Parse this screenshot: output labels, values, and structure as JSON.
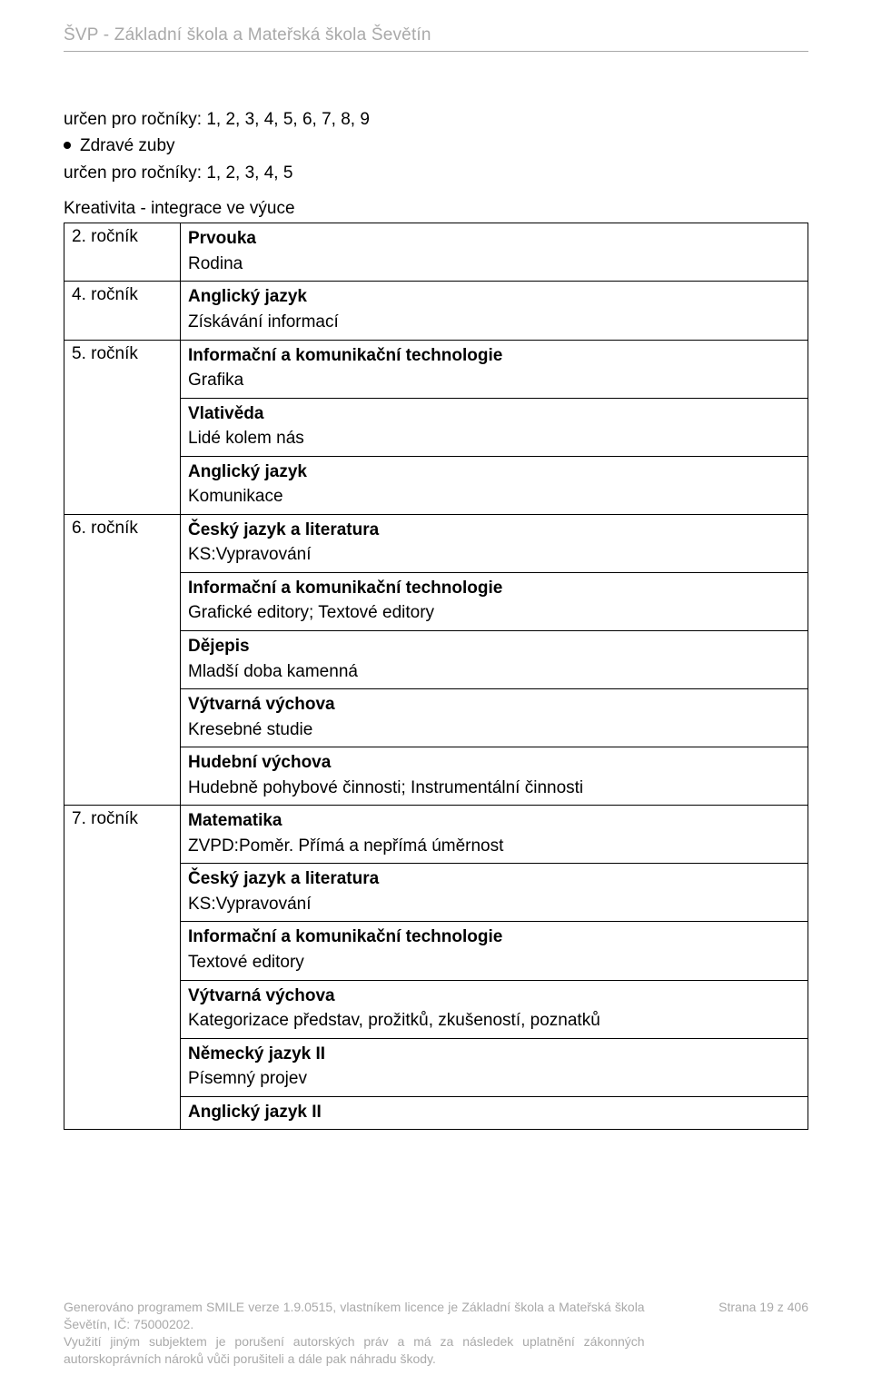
{
  "header": {
    "title": "ŠVP - Základní škola a Mateřská škola Ševětín"
  },
  "intro": {
    "line1": "určen pro ročníky:  1, 2, 3, 4, 5, 6, 7, 8, 9",
    "bullet_label": "Zdravé zuby",
    "line2": "určen pro ročníky:  1, 2, 3, 4, 5"
  },
  "table_title": "Kreativita - integrace ve výuce",
  "rows": [
    {
      "grade": "2. ročník",
      "items": [
        {
          "subject": "Prvouka",
          "topic": "Rodina"
        }
      ]
    },
    {
      "grade": "4. ročník",
      "items": [
        {
          "subject": "Anglický jazyk",
          "topic": "Získávání informací"
        }
      ]
    },
    {
      "grade": "5. ročník",
      "items": [
        {
          "subject": "Informační a komunikační technologie",
          "topic": "Grafika"
        },
        {
          "subject": "Vlativěda",
          "topic": "Lidé kolem nás"
        },
        {
          "subject": "Anglický jazyk",
          "topic": "Komunikace"
        }
      ]
    },
    {
      "grade": "6. ročník",
      "items": [
        {
          "subject": "Český jazyk a literatura",
          "topic": "KS:Vypravování"
        },
        {
          "subject": "Informační a komunikační technologie",
          "topic": "Grafické editory; Textové editory"
        },
        {
          "subject": "Dějepis",
          "topic": "Mladší doba kamenná"
        },
        {
          "subject": "Výtvarná výchova",
          "topic": "Kresebné studie"
        },
        {
          "subject": "Hudební výchova",
          "topic": "Hudebně pohybové činnosti; Instrumentální činnosti"
        }
      ]
    },
    {
      "grade": "7. ročník",
      "items": [
        {
          "subject": "Matematika",
          "topic": "ZVPD:Poměr. Přímá a nepřímá úměrnost"
        },
        {
          "subject": "Český jazyk a literatura",
          "topic": "KS:Vypravování"
        },
        {
          "subject": "Informační a komunikační technologie",
          "topic": "Textové editory"
        },
        {
          "subject": "Výtvarná výchova",
          "topic": "Kategorizace představ, prožitků, zkušeností, poznatků"
        },
        {
          "subject": "Německý jazyk II",
          "topic": "Písemný projev"
        },
        {
          "subject": "Anglický jazyk II",
          "topic": ""
        }
      ]
    }
  ],
  "footer": {
    "left1": "Generováno programem SMILE verze 1.9.0515, vlastníkem licence je Základní škola a Mateřská škola Ševětín, IČ: 75000202.",
    "left2": "Využití jiným subjektem je porušení autorských práv a má za následek uplatnění zákonných autorskoprávních nároků vůči porušiteli a dále pak náhradu škody.",
    "right": "Strana 19 z 406"
  }
}
